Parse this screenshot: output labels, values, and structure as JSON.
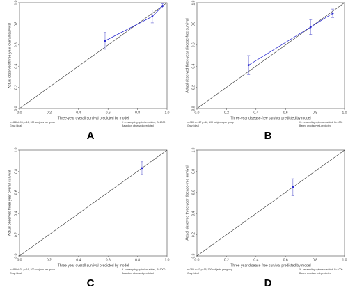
{
  "chart_data": [
    {
      "type": "scatter",
      "label": "A",
      "x_label": "Three-year overall survival predicted by model",
      "y_label": "Actual observed three-year overall survival",
      "footnote_left": [
        "n=388 d=95 p=16, 100 subjects per group",
        "Gray: ideal"
      ],
      "footnote_right": [
        "X - resampling optimism added, B=1000",
        "Based on observed-predicted"
      ],
      "x": [
        0.58,
        0.9,
        0.97
      ],
      "values": [
        0.64,
        0.87,
        0.97
      ],
      "errors": [
        0.08,
        0.06,
        0.02
      ],
      "color": "#2a2ad0",
      "xlim": [
        0,
        1
      ],
      "ylim": [
        0,
        1
      ],
      "xticks": [
        {
          "value": 0,
          "label": "0.0"
        },
        0.2,
        0.4,
        0.6,
        0.8,
        {
          "value": 1,
          "label": "1.0"
        }
      ],
      "yticks": [
        {
          "value": 0,
          "label": "0.0"
        },
        0.2,
        0.4,
        0.6,
        0.8,
        {
          "value": 1,
          "label": "1.0"
        }
      ]
    },
    {
      "type": "scatter",
      "label": "B",
      "x_label": "Three-year disease-free survival predicted by model",
      "y_label": "Actual observed three-year disease-free survival",
      "footnote_left": [
        "n=388 d=117 p=16, 100 subjects per group",
        "Gray: ideal"
      ],
      "footnote_right": [
        "X - resampling optimism added, B=1000",
        "Based on observed-predicted"
      ],
      "x": [
        0.35,
        0.77,
        0.92
      ],
      "values": [
        0.41,
        0.77,
        0.9
      ],
      "errors": [
        0.09,
        0.07,
        0.04
      ],
      "color": "#2a2ad0",
      "xlim": [
        0,
        1
      ],
      "ylim": [
        0,
        1
      ],
      "xticks": [
        {
          "value": 0,
          "label": "0.0"
        },
        0.2,
        0.4,
        0.6,
        0.8,
        {
          "value": 1,
          "label": "1.0"
        }
      ],
      "yticks": [
        {
          "value": 0,
          "label": "0.0"
        },
        0.2,
        0.4,
        0.6,
        0.8,
        {
          "value": 1,
          "label": "1.0"
        }
      ]
    },
    {
      "type": "scatter",
      "label": "C",
      "x_label": "Three-year overall survival predicted by model",
      "y_label": "Actual observed three-year overall survival",
      "footnote_left": [
        "n=389 d=31 p=16, 100 subjects per group",
        "Gray: ideal"
      ],
      "footnote_right": [
        "X - resampling optimism added, B=1000",
        "Based on observed-predicted"
      ],
      "x": [
        0.83
      ],
      "values": [
        0.83
      ],
      "errors": [
        0.06
      ],
      "color": "#2a2ad0",
      "xlim": [
        0,
        1
      ],
      "ylim": [
        0,
        1
      ],
      "xticks": [
        {
          "value": 0,
          "label": "0.0"
        },
        0.2,
        0.4,
        0.6,
        0.8,
        {
          "value": 1,
          "label": "1.0"
        }
      ],
      "yticks": [
        {
          "value": 0,
          "label": "0.0"
        },
        0.2,
        0.4,
        0.6,
        0.8,
        {
          "value": 1,
          "label": "1.0"
        }
      ]
    },
    {
      "type": "scatter",
      "label": "D",
      "x_label": "Three-year disease-free survival predicted by model",
      "y_label": "Actual observed three-year disease-free survival",
      "footnote_left": [
        "n=389 d=67 p=16, 100 subjects per group",
        "Gray: ideal"
      ],
      "footnote_right": [
        "X - resampling optimism added, B=1000",
        "Based on observed-predicted"
      ],
      "x": [
        0.65
      ],
      "values": [
        0.65
      ],
      "errors": [
        0.08
      ],
      "color": "#2a2ad0",
      "xlim": [
        0,
        1
      ],
      "ylim": [
        0,
        1
      ],
      "xticks": [
        {
          "value": 0,
          "label": "0.0"
        },
        0.2,
        0.4,
        0.6,
        0.8,
        {
          "value": 1,
          "label": "1.0"
        }
      ],
      "yticks": [
        {
          "value": 0,
          "label": "0.0"
        },
        0.2,
        0.4,
        0.6,
        0.8,
        {
          "value": 1,
          "label": "1.0"
        }
      ]
    }
  ]
}
